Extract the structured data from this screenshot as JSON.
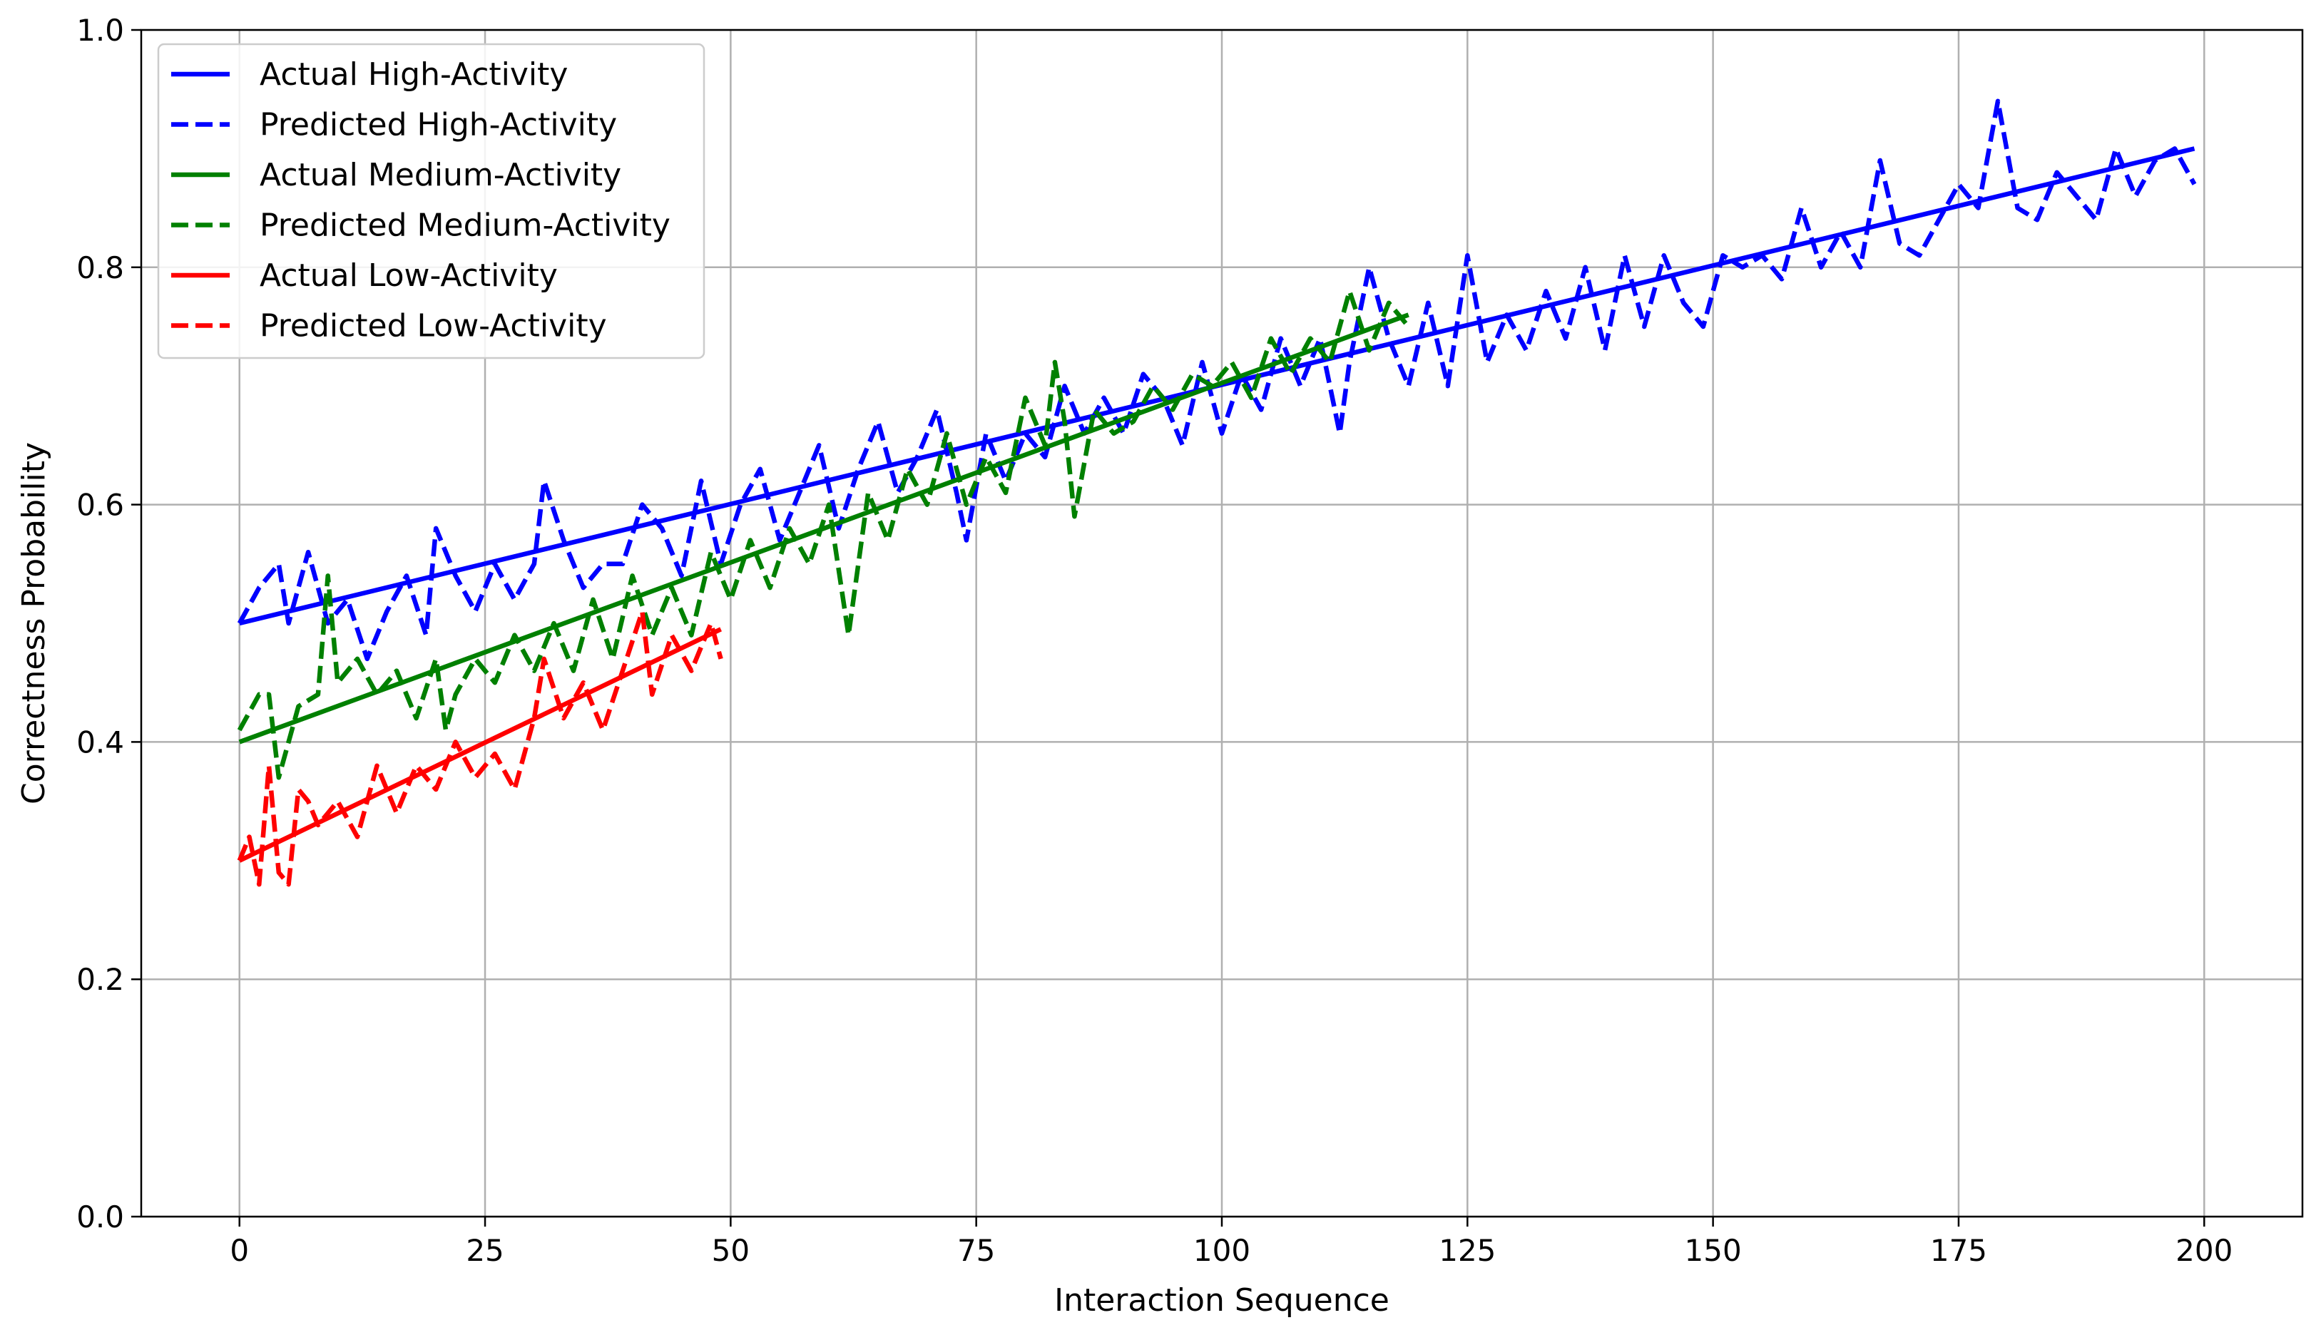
{
  "chart_data": {
    "type": "line",
    "title": "",
    "xlabel": "Interaction Sequence",
    "ylabel": "Correctness Probability",
    "xlim": [
      -10,
      210
    ],
    "ylim": [
      0.0,
      1.0
    ],
    "xticks": [
      0,
      25,
      50,
      75,
      100,
      125,
      150,
      175,
      200
    ],
    "yticks": [
      0.0,
      0.2,
      0.4,
      0.6,
      0.8,
      1.0
    ],
    "xtick_labels": [
      "0",
      "25",
      "50",
      "75",
      "100",
      "125",
      "150",
      "175",
      "200"
    ],
    "ytick_labels": [
      "0.0",
      "0.2",
      "0.4",
      "0.6",
      "0.8",
      "1.0"
    ],
    "grid": true,
    "legend_position": "top-left",
    "series": [
      {
        "name": "Actual High-Activity",
        "color": "#0000ff",
        "style": "solid",
        "x": [
          0,
          199
        ],
        "y": [
          0.5,
          0.9
        ]
      },
      {
        "name": "Predicted High-Activity",
        "color": "#0000ff",
        "style": "dashed",
        "x": [
          0,
          2,
          4,
          5,
          7,
          9,
          11,
          13,
          15,
          17,
          19,
          20,
          22,
          24,
          26,
          28,
          30,
          31,
          33,
          35,
          37,
          39,
          41,
          43,
          45,
          47,
          49,
          51,
          53,
          55,
          57,
          59,
          61,
          63,
          65,
          67,
          69,
          71,
          73,
          74,
          76,
          78,
          80,
          82,
          84,
          86,
          88,
          90,
          92,
          94,
          96,
          98,
          100,
          102,
          104,
          106,
          108,
          110,
          112,
          113,
          115,
          117,
          119,
          121,
          123,
          125,
          127,
          129,
          131,
          133,
          135,
          137,
          139,
          141,
          143,
          145,
          147,
          149,
          151,
          153,
          155,
          157,
          159,
          161,
          163,
          165,
          167,
          169,
          171,
          173,
          175,
          177,
          179,
          181,
          183,
          185,
          187,
          189,
          191,
          193,
          195,
          197,
          199
        ],
        "y": [
          0.5,
          0.53,
          0.55,
          0.5,
          0.56,
          0.5,
          0.52,
          0.47,
          0.51,
          0.54,
          0.49,
          0.58,
          0.54,
          0.51,
          0.55,
          0.52,
          0.55,
          0.62,
          0.57,
          0.53,
          0.55,
          0.55,
          0.6,
          0.58,
          0.54,
          0.62,
          0.55,
          0.6,
          0.63,
          0.57,
          0.61,
          0.65,
          0.58,
          0.63,
          0.67,
          0.61,
          0.64,
          0.68,
          0.61,
          0.57,
          0.66,
          0.62,
          0.66,
          0.64,
          0.7,
          0.66,
          0.69,
          0.66,
          0.71,
          0.69,
          0.65,
          0.72,
          0.66,
          0.71,
          0.68,
          0.74,
          0.7,
          0.74,
          0.66,
          0.72,
          0.8,
          0.74,
          0.7,
          0.77,
          0.7,
          0.81,
          0.72,
          0.76,
          0.73,
          0.78,
          0.74,
          0.8,
          0.73,
          0.81,
          0.75,
          0.81,
          0.77,
          0.75,
          0.81,
          0.8,
          0.81,
          0.79,
          0.85,
          0.8,
          0.83,
          0.8,
          0.89,
          0.82,
          0.81,
          0.84,
          0.87,
          0.85,
          0.94,
          0.85,
          0.84,
          0.88,
          0.86,
          0.84,
          0.9,
          0.86,
          0.89,
          0.9,
          0.87
        ]
      },
      {
        "name": "Actual Medium-Activity",
        "color": "#008000",
        "style": "solid",
        "x": [
          0,
          119
        ],
        "y": [
          0.4,
          0.76
        ]
      },
      {
        "name": "Predicted Medium-Activity",
        "color": "#008000",
        "style": "dashed",
        "x": [
          0,
          2,
          3,
          4,
          5,
          6,
          8,
          9,
          10,
          12,
          14,
          16,
          18,
          20,
          21,
          22,
          24,
          26,
          28,
          30,
          32,
          34,
          36,
          38,
          40,
          42,
          44,
          46,
          48,
          50,
          52,
          54,
          56,
          58,
          60,
          62,
          64,
          66,
          68,
          70,
          72,
          74,
          76,
          78,
          80,
          82,
          83,
          84,
          85,
          87,
          89,
          91,
          93,
          95,
          97,
          99,
          101,
          103,
          105,
          107,
          109,
          111,
          113,
          115,
          117,
          119
        ],
        "y": [
          0.41,
          0.44,
          0.44,
          0.37,
          0.4,
          0.43,
          0.44,
          0.54,
          0.45,
          0.47,
          0.44,
          0.46,
          0.42,
          0.47,
          0.41,
          0.44,
          0.47,
          0.45,
          0.49,
          0.46,
          0.5,
          0.46,
          0.52,
          0.47,
          0.54,
          0.49,
          0.53,
          0.49,
          0.56,
          0.52,
          0.57,
          0.53,
          0.58,
          0.55,
          0.6,
          0.49,
          0.61,
          0.57,
          0.63,
          0.6,
          0.66,
          0.6,
          0.64,
          0.61,
          0.69,
          0.65,
          0.72,
          0.67,
          0.59,
          0.68,
          0.66,
          0.67,
          0.7,
          0.68,
          0.71,
          0.7,
          0.72,
          0.69,
          0.74,
          0.71,
          0.74,
          0.72,
          0.78,
          0.73,
          0.77,
          0.75
        ]
      },
      {
        "name": "Actual Low-Activity",
        "color": "#ff0000",
        "style": "solid",
        "x": [
          0,
          49
        ],
        "y": [
          0.3,
          0.495
        ]
      },
      {
        "name": "Predicted Low-Activity",
        "color": "#ff0000",
        "style": "dashed",
        "x": [
          0,
          1,
          2,
          3,
          4,
          5,
          6,
          7,
          8,
          10,
          12,
          14,
          16,
          18,
          20,
          22,
          24,
          26,
          28,
          30,
          31,
          33,
          35,
          37,
          39,
          41,
          42,
          44,
          46,
          48,
          49
        ],
        "y": [
          0.3,
          0.32,
          0.28,
          0.38,
          0.29,
          0.28,
          0.36,
          0.35,
          0.33,
          0.35,
          0.32,
          0.38,
          0.34,
          0.38,
          0.36,
          0.4,
          0.37,
          0.39,
          0.36,
          0.42,
          0.47,
          0.42,
          0.45,
          0.41,
          0.46,
          0.51,
          0.44,
          0.49,
          0.46,
          0.5,
          0.47
        ]
      }
    ]
  }
}
